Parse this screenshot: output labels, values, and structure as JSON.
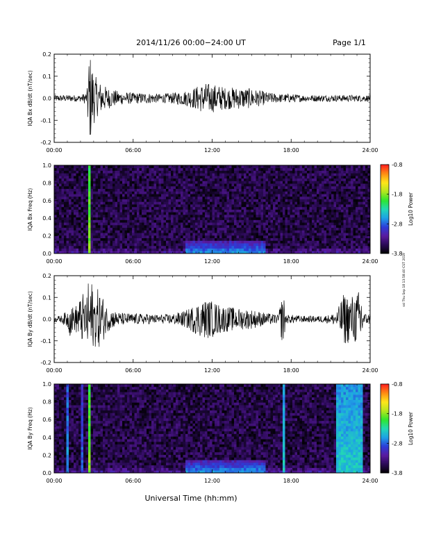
{
  "header": {
    "title": "2014/11/26  00:00−24:00 UT",
    "page": "Page 1/1"
  },
  "x_axis_title": "Universal Time (hh:mm)",
  "credit": "ssl Thu Sep 18 13:58:40 CST 2019",
  "colorbar": {
    "label": "Log10 Power",
    "ticks": [
      "-0.8",
      "-1.8",
      "-2.8",
      "-3.8"
    ],
    "range": [
      -3.8,
      -0.8
    ],
    "colors": [
      "#000000",
      "#2a0a55",
      "#5a1aa0",
      "#2c3cd8",
      "#1ea0e6",
      "#22d8b4",
      "#2ee62e",
      "#b4e61e",
      "#ffe61a",
      "#ff8c14",
      "#ff1e1e"
    ]
  },
  "chart_data": [
    {
      "type": "line",
      "panel": "IQA Bx waveform",
      "ylabel": "IQA Bx dB/dt (nT/sec)",
      "xlim": [
        0,
        24
      ],
      "ylim": [
        -0.2,
        0.2
      ],
      "xticks": [
        "00:00",
        "06:00",
        "12:00",
        "18:00",
        "24:00"
      ],
      "yticks": [
        "0.2",
        "0.1",
        "0.0",
        "-0.1",
        "-0.2"
      ],
      "envelope": {
        "x": [
          0,
          1,
          2,
          2.5,
          2.6,
          2.8,
          3.0,
          3.3,
          3.6,
          4.0,
          4.5,
          5,
          6,
          7,
          8,
          9,
          10,
          10.5,
          11,
          11.5,
          12,
          12.5,
          13,
          14,
          15,
          16,
          17,
          18,
          19,
          20,
          21,
          22,
          23,
          24
        ],
        "amplitude": [
          0.015,
          0.015,
          0.015,
          0.03,
          0.2,
          0.2,
          0.12,
          0.08,
          0.07,
          0.05,
          0.04,
          0.03,
          0.025,
          0.025,
          0.02,
          0.025,
          0.035,
          0.045,
          0.06,
          0.07,
          0.065,
          0.06,
          0.05,
          0.05,
          0.045,
          0.03,
          0.02,
          0.02,
          0.015,
          0.015,
          0.015,
          0.015,
          0.015,
          0.015
        ]
      }
    },
    {
      "type": "heatmap",
      "panel": "IQA Bx spectrogram",
      "ylabel": "IQA Bx Freq (Hz)",
      "xlim": [
        0,
        24
      ],
      "ylim": [
        0,
        1.0
      ],
      "xticks": [
        "00:00",
        "06:00",
        "12:00",
        "18:00",
        "24:00"
      ],
      "yticks": [
        "1.0",
        "0.8",
        "0.6",
        "0.4",
        "0.2",
        "0.0"
      ],
      "zlim": [
        -3.8,
        -0.8
      ],
      "features": [
        {
          "description": "broadband burst",
          "t_start": 2.5,
          "t_end": 2.8,
          "f_max": 1.0,
          "log_power": -1.8
        },
        {
          "description": "low-frequency enhancement",
          "t_start": 10.0,
          "t_end": 16.0,
          "f_max": 0.15,
          "log_power": -2.6
        }
      ]
    },
    {
      "type": "line",
      "panel": "IQA By waveform",
      "ylabel": "IQA By dB/dt (nT/sec)",
      "xlim": [
        0,
        24
      ],
      "ylim": [
        -0.2,
        0.2
      ],
      "xticks": [
        "00:00",
        "06:00",
        "12:00",
        "18:00",
        "24:00"
      ],
      "yticks": [
        "0.2",
        "0.1",
        "0.0",
        "-0.1",
        "-0.2"
      ],
      "envelope": {
        "x": [
          0,
          0.5,
          1.0,
          1.2,
          1.5,
          2.0,
          2.2,
          2.5,
          2.6,
          2.8,
          3.0,
          3.3,
          3.6,
          4.0,
          4.5,
          5,
          6,
          7,
          8,
          9,
          10,
          10.5,
          11,
          11.5,
          12,
          12.5,
          13,
          14,
          15,
          16,
          17,
          17.4,
          17.6,
          18,
          19,
          20,
          21,
          21.5,
          22,
          22.5,
          23,
          23.3,
          23.5,
          24
        ],
        "amplitude": [
          0.015,
          0.015,
          0.04,
          0.08,
          0.05,
          0.1,
          0.12,
          0.1,
          0.2,
          0.2,
          0.12,
          0.14,
          0.12,
          0.06,
          0.04,
          0.03,
          0.025,
          0.025,
          0.02,
          0.025,
          0.04,
          0.06,
          0.08,
          0.09,
          0.085,
          0.07,
          0.06,
          0.05,
          0.045,
          0.03,
          0.02,
          0.13,
          0.02,
          0.02,
          0.015,
          0.015,
          0.02,
          0.04,
          0.12,
          0.11,
          0.12,
          0.15,
          0.03,
          0.02
        ]
      }
    },
    {
      "type": "heatmap",
      "panel": "IQA By spectrogram",
      "ylabel": "IQA By Freq (Hz)",
      "xlim": [
        0,
        24
      ],
      "ylim": [
        0,
        1.0
      ],
      "xticks": [
        "00:00",
        "06:00",
        "12:00",
        "18:00",
        "24:00"
      ],
      "yticks": [
        "1.0",
        "0.8",
        "0.6",
        "0.4",
        "0.2",
        "0.0"
      ],
      "zlim": [
        -3.8,
        -0.8
      ],
      "features": [
        {
          "description": "broadband burst",
          "t_start": 1.0,
          "t_end": 1.1,
          "f_max": 1.0,
          "log_power": -2.6
        },
        {
          "description": "broadband burst",
          "t_start": 2.0,
          "t_end": 2.2,
          "f_max": 1.0,
          "log_power": -2.8
        },
        {
          "description": "broadband burst",
          "t_start": 2.5,
          "t_end": 2.8,
          "f_max": 1.0,
          "log_power": -1.8
        },
        {
          "description": "low-frequency enhancement",
          "t_start": 10.0,
          "t_end": 16.0,
          "f_max": 0.15,
          "log_power": -2.6
        },
        {
          "description": "broadband burst",
          "t_start": 17.4,
          "t_end": 17.6,
          "f_max": 1.0,
          "log_power": -2.4
        },
        {
          "description": "broadband burst",
          "t_start": 21.5,
          "t_end": 23.4,
          "f_max": 1.0,
          "log_power": -2.4
        }
      ]
    }
  ]
}
